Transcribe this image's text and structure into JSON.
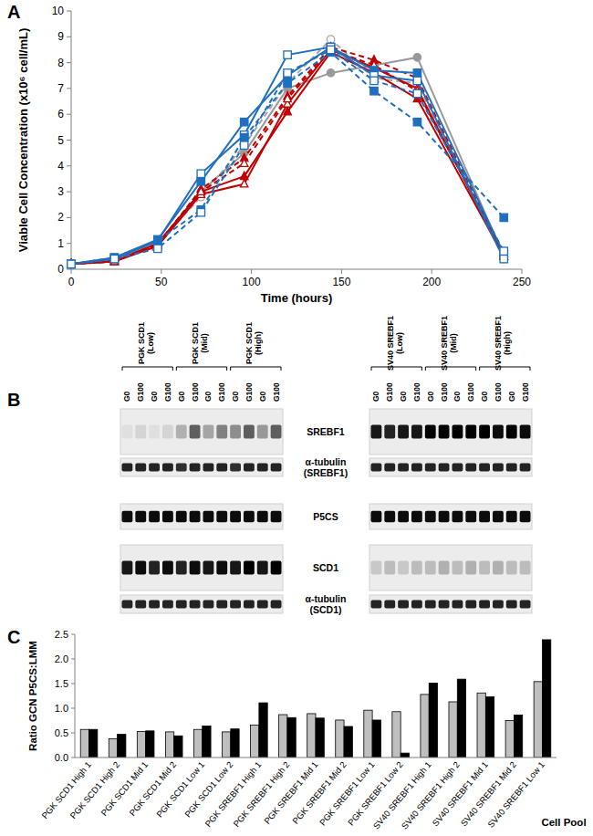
{
  "panels": [
    "A",
    "B",
    "C"
  ],
  "chart_data": [
    {
      "type": "line",
      "x_label": "Time (hours)",
      "y_label": "Viable Cell Concentration (x10⁶ cell/mL)",
      "x": [
        0,
        24,
        48,
        72,
        96,
        120,
        144,
        168,
        192,
        240
      ],
      "xlim": [
        0,
        250
      ],
      "xticks": [
        0,
        50,
        100,
        150,
        200,
        250
      ],
      "ylim": [
        0,
        10
      ],
      "yticks": [
        0,
        1,
        2,
        3,
        4,
        5,
        6,
        7,
        8,
        9,
        10
      ],
      "grid": false,
      "series": [
        {
          "color": "#999999",
          "marker": "circle",
          "line_style": "solid",
          "values": [
            0.2,
            0.4,
            1.0,
            3.0,
            4.5,
            7.0,
            7.6,
            7.9,
            8.2,
            0.5
          ]
        },
        {
          "color": "#a6a6a6",
          "marker": "circle-open",
          "line_style": "dashed",
          "values": [
            0.2,
            0.4,
            1.0,
            2.8,
            4.8,
            7.2,
            8.9,
            7.4,
            7.2,
            0.4
          ]
        },
        {
          "color": "#c00000",
          "marker": "triangle",
          "line_style": "solid",
          "values": [
            0.2,
            0.3,
            1.0,
            3.0,
            3.6,
            6.1,
            8.4,
            7.6,
            6.6,
            0.5
          ]
        },
        {
          "color": "#c00000",
          "marker": "triangle-open",
          "line_style": "solid",
          "values": [
            0.2,
            0.3,
            0.9,
            2.9,
            3.3,
            6.4,
            8.5,
            7.8,
            7.0,
            0.5
          ]
        },
        {
          "color": "#c00000",
          "marker": "triangle",
          "line_style": "dashed",
          "values": [
            0.2,
            0.35,
            0.95,
            3.1,
            4.3,
            6.7,
            8.6,
            8.1,
            7.4,
            0.5
          ]
        },
        {
          "color": "#c00000",
          "marker": "triangle-open",
          "line_style": "dashed",
          "values": [
            0.2,
            0.3,
            1.0,
            3.0,
            4.1,
            6.6,
            8.5,
            7.9,
            6.9,
            0.6
          ]
        },
        {
          "color": "#1f6fc0",
          "marker": "square",
          "line_style": "solid",
          "values": [
            0.2,
            0.45,
            1.15,
            3.4,
            5.7,
            7.5,
            8.6,
            7.7,
            7.6,
            0.6
          ]
        },
        {
          "color": "#1f6fc0",
          "marker": "square-open",
          "line_style": "solid",
          "values": [
            0.2,
            0.4,
            1.1,
            3.7,
            5.2,
            8.3,
            8.6,
            7.5,
            7.3,
            0.4
          ]
        },
        {
          "color": "#1f6fc0",
          "marker": "square",
          "line_style": "dashed",
          "values": [
            0.2,
            0.45,
            1.1,
            2.3,
            5.1,
            7.2,
            8.4,
            6.9,
            5.7,
            2.0
          ]
        },
        {
          "color": "#1f6fc0",
          "marker": "square-open",
          "line_style": "dashed",
          "values": [
            0.2,
            0.4,
            0.8,
            2.2,
            4.8,
            7.6,
            8.5,
            7.3,
            6.8,
            0.7
          ]
        }
      ]
    },
    {
      "type": "bar",
      "x_label": "Cell Pool",
      "y_label": "Ratio GCN P5CS:LMM",
      "categories": [
        "PGK SCD1 High 1",
        "PGK SCD1 High 2",
        "PGK SCD1 Mid 1",
        "PGK SCD1 Mid 2",
        "PGK SCD1 Low 1",
        "PGK SCD1 Low 2",
        "PGK SREBF1 High 1",
        "PGK SREBF1 High 2",
        "PGK SREBF1 Mid 1",
        "PGK SREBF1 Mid 2",
        "PGK SREBF1 Low 1",
        "PGK SREBF1 Low 2",
        "SV40 SREBF1 High 1",
        "SV40 SREBF1 High 2",
        "SV40 SREBF1 Mid 1",
        "SV40 SREBF1 Mid 2",
        "SV40 SREBF1 Low 1"
      ],
      "ylim": [
        0,
        2.5
      ],
      "yticks": [
        {
          "value": 0,
          "label": "0.0"
        },
        0.5,
        {
          "value": 1,
          "label": "1.0"
        },
        1.5,
        {
          "value": 2,
          "label": "2.0"
        },
        2.5
      ],
      "grid": false,
      "series": [
        {
          "color": "#bfbfbf",
          "values": [
            0.57,
            0.38,
            0.53,
            0.52,
            0.57,
            0.52,
            0.66,
            0.87,
            0.89,
            0.76,
            0.96,
            0.93,
            1.28,
            1.13,
            1.31,
            0.75,
            1.54
          ]
        },
        {
          "color": "#000000",
          "values": [
            0.57,
            0.47,
            0.54,
            0.44,
            0.64,
            0.58,
            1.11,
            0.81,
            0.8,
            0.63,
            0.76,
            0.09,
            1.51,
            1.59,
            1.23,
            0.86,
            2.39
          ]
        }
      ]
    }
  ],
  "blot_rows": [
    "SREBF1",
    "α-tubulin (SREBF1)",
    "P5CS",
    "SCD1",
    "α-tubulin (SCD1)"
  ],
  "blots": [
    {
      "groups": [
        "PGK SCD1 (Low)",
        "PGK SCD1 (Mid)",
        "PGK SCD1 (High)"
      ],
      "lanes": [
        "G0",
        "G100",
        "G0",
        "G100",
        "G0",
        "G100",
        "G0",
        "G100",
        "G0",
        "G100",
        "G0",
        "G100"
      ],
      "rows": [
        {
          "intensity": [
            0.05,
            0.1,
            0.05,
            0.1,
            0.25,
            0.6,
            0.3,
            0.45,
            0.4,
            0.6,
            0.35,
            0.6
          ]
        },
        {
          "intensity": [
            0.85,
            0.85,
            0.85,
            0.85,
            0.8,
            0.85,
            0.85,
            0.85,
            0.8,
            0.85,
            0.85,
            0.85
          ]
        },
        {
          "intensity": [
            0.95,
            0.95,
            0.95,
            0.95,
            0.95,
            0.95,
            0.95,
            0.95,
            0.95,
            0.95,
            0.95,
            0.95
          ]
        },
        {
          "intensity": [
            0.9,
            0.95,
            0.85,
            0.95,
            0.85,
            0.95,
            0.9,
            0.95,
            0.9,
            1.0,
            0.9,
            1.0
          ]
        },
        {
          "intensity": [
            0.85,
            0.85,
            0.85,
            0.85,
            0.85,
            0.85,
            0.85,
            0.85,
            0.85,
            0.85,
            0.85,
            0.85
          ]
        }
      ]
    },
    {
      "groups": [
        "SV40 SREBF1 (Low)",
        "SV40 SREBF1 (Mid)",
        "SV40 SREBF1 (High)"
      ],
      "lanes": [
        "G0",
        "G100",
        "G0",
        "G100",
        "G0",
        "G100",
        "G0",
        "G100",
        "G0",
        "G100",
        "G0",
        "G100"
      ],
      "rows": [
        {
          "intensity": [
            0.9,
            0.85,
            0.9,
            0.9,
            1.0,
            1.0,
            1.0,
            1.0,
            1.0,
            0.95,
            1.0,
            0.95
          ]
        },
        {
          "intensity": [
            0.85,
            0.85,
            0.85,
            0.85,
            0.85,
            0.85,
            0.85,
            0.85,
            0.85,
            0.85,
            0.85,
            0.85
          ]
        },
        {
          "intensity": [
            0.95,
            0.95,
            0.95,
            0.95,
            0.95,
            0.95,
            0.95,
            0.95,
            0.95,
            0.95,
            0.95,
            0.95
          ]
        },
        {
          "intensity": [
            0.15,
            0.2,
            0.15,
            0.2,
            0.2,
            0.25,
            0.2,
            0.25,
            0.2,
            0.25,
            0.2,
            0.2
          ]
        },
        {
          "intensity": [
            0.85,
            0.85,
            0.85,
            0.85,
            0.85,
            0.85,
            0.85,
            0.85,
            0.85,
            0.85,
            0.85,
            0.85
          ]
        }
      ]
    }
  ]
}
